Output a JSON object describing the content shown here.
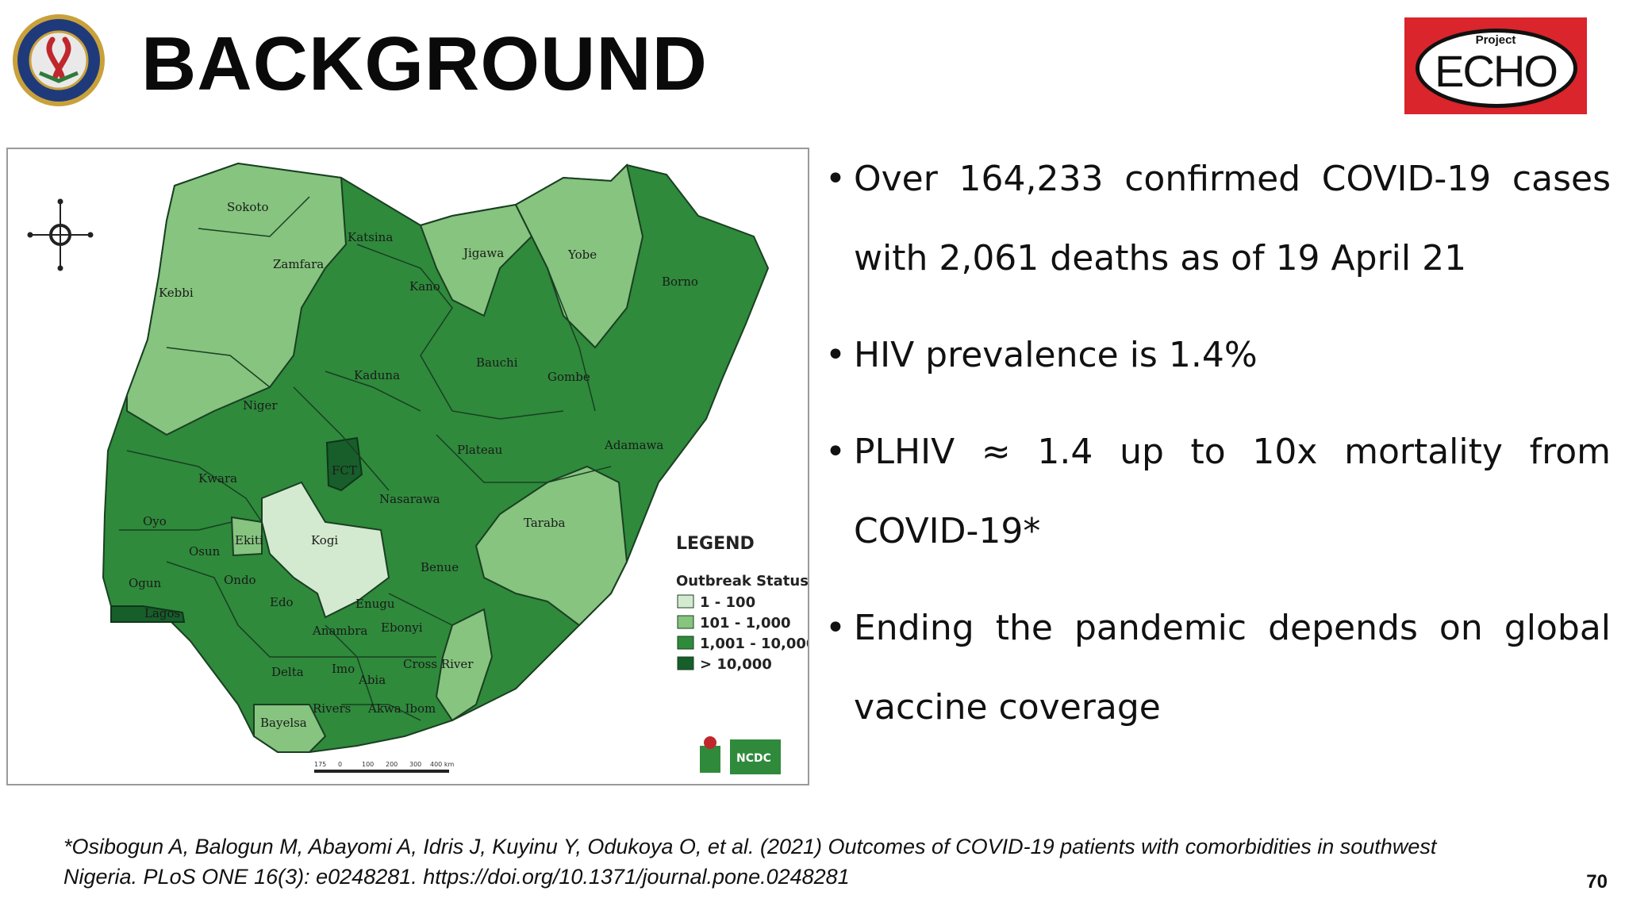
{
  "header": {
    "title": "BACKGROUND",
    "seal_text": "DEPARTMENT OF DEFENSE · HIV/AIDS PREVENTION",
    "logo_small": "Project",
    "logo_main": "ECHO"
  },
  "colors": {
    "cat_1_100": "#d4ead0",
    "cat_101_1000": "#86c47f",
    "cat_1001_10000": "#2f8a3c",
    "cat_over_10000": "#175e2a",
    "logo_red": "#d9252b"
  },
  "map": {
    "legend": {
      "title": "LEGEND",
      "subtitle": "Outbreak Status",
      "items": [
        {
          "label": "1 - 100",
          "color": "#d4ead0"
        },
        {
          "label": "101 - 1,000",
          "color": "#86c47f"
        },
        {
          "label": "1,001 - 10,000",
          "color": "#2f8a3c"
        },
        {
          "label": "> 10,000",
          "color": "#175e2a"
        }
      ]
    },
    "states": [
      {
        "name": "Sokoto",
        "status": "101 - 1,000"
      },
      {
        "name": "Zamfara",
        "status": "101 - 1,000"
      },
      {
        "name": "Kebbi",
        "status": "101 - 1,000"
      },
      {
        "name": "Katsina",
        "status": "1,001 - 10,000"
      },
      {
        "name": "Kano",
        "status": "1,001 - 10,000"
      },
      {
        "name": "Jigawa",
        "status": "101 - 1,000"
      },
      {
        "name": "Yobe",
        "status": "101 - 1,000"
      },
      {
        "name": "Borno",
        "status": "1,001 - 10,000"
      },
      {
        "name": "Kaduna",
        "status": "1,001 - 10,000"
      },
      {
        "name": "Bauchi",
        "status": "1,001 - 10,000"
      },
      {
        "name": "Gombe",
        "status": "1,001 - 10,000"
      },
      {
        "name": "Niger",
        "status": "101 - 1,000"
      },
      {
        "name": "FCT",
        "status": "> 10,000"
      },
      {
        "name": "Plateau",
        "status": "1,001 - 10,000"
      },
      {
        "name": "Adamawa",
        "status": "1,001 - 10,000"
      },
      {
        "name": "Kwara",
        "status": "1,001 - 10,000"
      },
      {
        "name": "Nasarawa",
        "status": "1,001 - 10,000"
      },
      {
        "name": "Oyo",
        "status": "1,001 - 10,000"
      },
      {
        "name": "Taraba",
        "status": "101 - 1,000"
      },
      {
        "name": "Osun",
        "status": "1,001 - 10,000"
      },
      {
        "name": "Ekiti",
        "status": "101 - 1,000"
      },
      {
        "name": "Kogi",
        "status": "1 - 100"
      },
      {
        "name": "Benue",
        "status": "1,001 - 10,000"
      },
      {
        "name": "Ondo",
        "status": "1,001 - 10,000"
      },
      {
        "name": "Ogun",
        "status": "1,001 - 10,000"
      },
      {
        "name": "Lagos",
        "status": "> 10,000"
      },
      {
        "name": "Edo",
        "status": "1,001 - 10,000"
      },
      {
        "name": "Enugu",
        "status": "1,001 - 10,000"
      },
      {
        "name": "Anambra",
        "status": "1,001 - 10,000"
      },
      {
        "name": "Ebonyi",
        "status": "1,001 - 10,000"
      },
      {
        "name": "Delta",
        "status": "1,001 - 10,000"
      },
      {
        "name": "Imo",
        "status": "1,001 - 10,000"
      },
      {
        "name": "Abia",
        "status": "1,001 - 10,000"
      },
      {
        "name": "Cross River",
        "status": "101 - 1,000"
      },
      {
        "name": "Akwa Ibom",
        "status": "1,001 - 10,000"
      },
      {
        "name": "Rivers",
        "status": "1,001 - 10,000"
      },
      {
        "name": "Bayelsa",
        "status": "101 - 1,000"
      }
    ],
    "scale_ticks": [
      "175",
      "0",
      "100",
      "200",
      "300",
      "400 km"
    ],
    "logo_badge": "NCDC"
  },
  "bullets": [
    "Over 164,233 confirmed COVID-19 cases with 2,061 deaths as of  19 April 21",
    "HIV prevalence is 1.4%",
    "PLHIV ≈ 1.4 up to 10x mortality from COVID-19*",
    "Ending the pandemic depends on global vaccine coverage"
  ],
  "footer": {
    "citation": "*Osibogun A, Balogun M, Abayomi A, Idris J, Kuyinu Y, Odukoya O, et al. (2021) Outcomes of COVID-19 patients with comorbidities in southwest Nigeria. PLoS ONE 16(3): e0248281. https://doi.org/10.1371/journal.pone.0248281",
    "page_number": "70"
  }
}
